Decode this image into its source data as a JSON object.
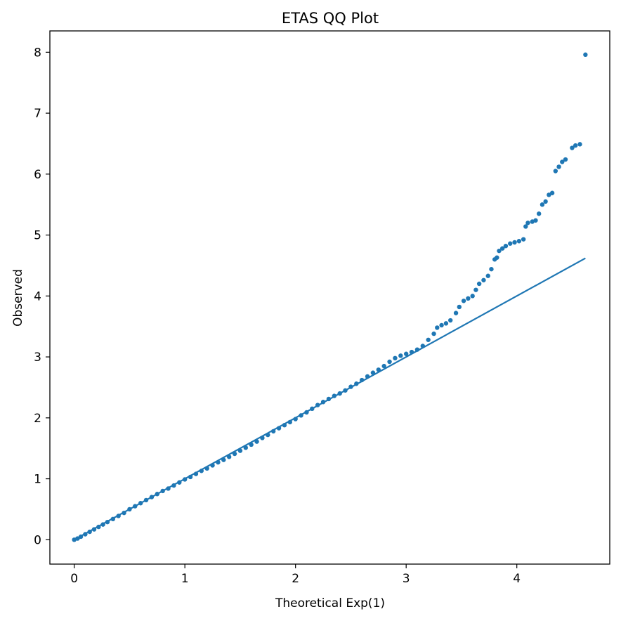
{
  "chart_data": {
    "type": "scatter",
    "title": "ETAS QQ Plot",
    "xlabel": "Theoretical Exp(1)",
    "ylabel": "Observed",
    "xlim": [
      -0.22,
      4.84
    ],
    "ylim": [
      -0.4,
      8.35
    ],
    "xticks": [
      0,
      1,
      2,
      3,
      4
    ],
    "yticks": [
      0,
      1,
      2,
      3,
      4,
      5,
      6,
      7,
      8
    ],
    "grid": false,
    "color": "#1f77b4",
    "reference_line": {
      "x": [
        0,
        4.62
      ],
      "y": [
        0,
        4.62
      ]
    },
    "series": [
      {
        "points": [
          [
            0.0,
            0.0
          ],
          [
            0.03,
            0.02
          ],
          [
            0.06,
            0.05
          ],
          [
            0.1,
            0.09
          ],
          [
            0.14,
            0.13
          ],
          [
            0.18,
            0.17
          ],
          [
            0.22,
            0.21
          ],
          [
            0.26,
            0.25
          ],
          [
            0.3,
            0.29
          ],
          [
            0.35,
            0.34
          ],
          [
            0.4,
            0.39
          ],
          [
            0.45,
            0.44
          ],
          [
            0.5,
            0.5
          ],
          [
            0.55,
            0.55
          ],
          [
            0.6,
            0.6
          ],
          [
            0.65,
            0.65
          ],
          [
            0.7,
            0.7
          ],
          [
            0.75,
            0.75
          ],
          [
            0.8,
            0.8
          ],
          [
            0.85,
            0.84
          ],
          [
            0.9,
            0.89
          ],
          [
            0.95,
            0.94
          ],
          [
            1.0,
            0.99
          ],
          [
            1.05,
            1.03
          ],
          [
            1.1,
            1.08
          ],
          [
            1.15,
            1.13
          ],
          [
            1.2,
            1.17
          ],
          [
            1.25,
            1.22
          ],
          [
            1.3,
            1.27
          ],
          [
            1.35,
            1.31
          ],
          [
            1.4,
            1.36
          ],
          [
            1.45,
            1.41
          ],
          [
            1.5,
            1.46
          ],
          [
            1.55,
            1.51
          ],
          [
            1.6,
            1.56
          ],
          [
            1.65,
            1.61
          ],
          [
            1.7,
            1.67
          ],
          [
            1.75,
            1.72
          ],
          [
            1.8,
            1.78
          ],
          [
            1.85,
            1.83
          ],
          [
            1.9,
            1.88
          ],
          [
            1.95,
            1.93
          ],
          [
            2.0,
            1.98
          ],
          [
            2.05,
            2.04
          ],
          [
            2.1,
            2.09
          ],
          [
            2.15,
            2.15
          ],
          [
            2.2,
            2.21
          ],
          [
            2.25,
            2.26
          ],
          [
            2.3,
            2.31
          ],
          [
            2.35,
            2.36
          ],
          [
            2.4,
            2.4
          ],
          [
            2.45,
            2.45
          ],
          [
            2.5,
            2.51
          ],
          [
            2.55,
            2.56
          ],
          [
            2.6,
            2.62
          ],
          [
            2.65,
            2.68
          ],
          [
            2.7,
            2.74
          ],
          [
            2.75,
            2.79
          ],
          [
            2.8,
            2.85
          ],
          [
            2.85,
            2.92
          ],
          [
            2.9,
            2.98
          ],
          [
            2.95,
            3.02
          ],
          [
            3.0,
            3.05
          ],
          [
            3.05,
            3.08
          ],
          [
            3.1,
            3.12
          ],
          [
            3.15,
            3.18
          ],
          [
            3.2,
            3.28
          ],
          [
            3.25,
            3.38
          ],
          [
            3.28,
            3.48
          ],
          [
            3.32,
            3.52
          ],
          [
            3.36,
            3.55
          ],
          [
            3.4,
            3.6
          ],
          [
            3.45,
            3.72
          ],
          [
            3.48,
            3.82
          ],
          [
            3.52,
            3.92
          ],
          [
            3.56,
            3.96
          ],
          [
            3.6,
            4.0
          ],
          [
            3.63,
            4.1
          ],
          [
            3.66,
            4.2
          ],
          [
            3.7,
            4.26
          ],
          [
            3.74,
            4.33
          ],
          [
            3.77,
            4.44
          ],
          [
            3.8,
            4.6
          ],
          [
            3.82,
            4.63
          ],
          [
            3.84,
            4.74
          ],
          [
            3.87,
            4.78
          ],
          [
            3.9,
            4.82
          ],
          [
            3.94,
            4.86
          ],
          [
            3.98,
            4.88
          ],
          [
            4.02,
            4.9
          ],
          [
            4.06,
            4.93
          ],
          [
            4.08,
            5.14
          ],
          [
            4.1,
            5.2
          ],
          [
            4.14,
            5.22
          ],
          [
            4.17,
            5.24
          ],
          [
            4.2,
            5.35
          ],
          [
            4.23,
            5.5
          ],
          [
            4.26,
            5.55
          ],
          [
            4.29,
            5.66
          ],
          [
            4.32,
            5.69
          ],
          [
            4.35,
            6.05
          ],
          [
            4.38,
            6.12
          ],
          [
            4.41,
            6.2
          ],
          [
            4.44,
            6.24
          ],
          [
            4.5,
            6.43
          ],
          [
            4.53,
            6.47
          ],
          [
            4.57,
            6.49
          ],
          [
            4.62,
            7.96
          ]
        ]
      }
    ]
  }
}
